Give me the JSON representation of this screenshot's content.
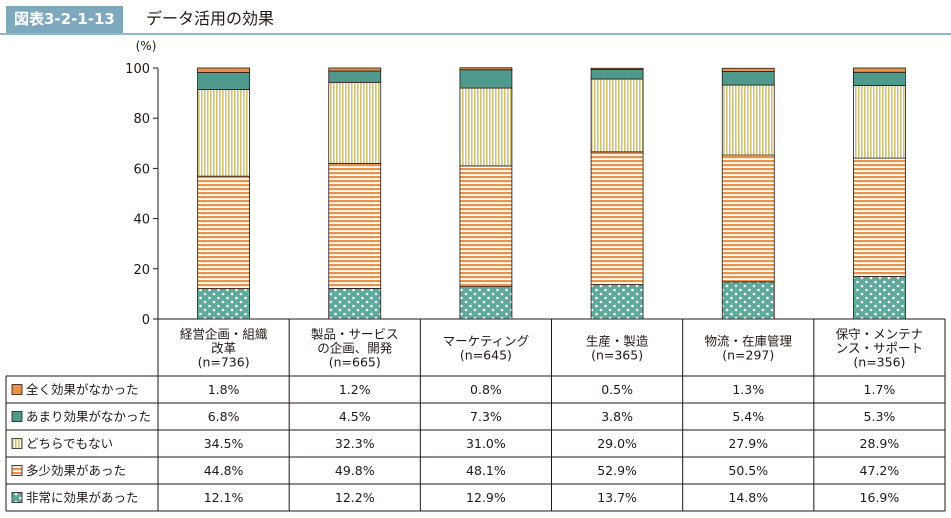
{
  "figure": {
    "number": "図表3-2-1-13",
    "title": "データ活用の効果"
  },
  "colors": {
    "header_badge": "#7da8be",
    "header_rule": "#8eb8cd",
    "very_effective": "#5fa89c",
    "somewhat_effective": "#e8924a",
    "neither": "#cfc27a",
    "not_very_effective": "#4f9a8c",
    "not_effective_at_all": "#e8924a"
  },
  "chart_data": {
    "type": "bar",
    "stacked": true,
    "unit": "(%)",
    "ylim": [
      0,
      100
    ],
    "yticks": [
      0,
      20,
      40,
      60,
      80,
      100
    ],
    "categories": [
      [
        "経営企画・組織",
        "改革",
        "(n=736)"
      ],
      [
        "製品・サービス",
        "の企画、開発",
        "(n=665)"
      ],
      [
        "マーケティング",
        "(n=645)"
      ],
      [
        "生産・製造",
        "(n=365)"
      ],
      [
        "物流・在庫管理",
        "(n=297)"
      ],
      [
        "保守・メンテナ",
        "ンス・サポート",
        "(n=356)"
      ]
    ],
    "series": [
      {
        "name": "非常に効果があった",
        "values": [
          12.1,
          12.2,
          12.9,
          13.7,
          14.8,
          16.9
        ],
        "labels": [
          "12.1%",
          "12.2%",
          "12.9%",
          "13.7%",
          "14.8%",
          "16.9%"
        ],
        "pattern": "dots",
        "color": "#5fa89c"
      },
      {
        "name": "多少効果があった",
        "values": [
          44.8,
          49.8,
          48.1,
          52.9,
          50.5,
          47.2
        ],
        "labels": [
          "44.8%",
          "49.8%",
          "48.1%",
          "52.9%",
          "50.5%",
          "47.2%"
        ],
        "pattern": "hstripes",
        "color": "#e8924a"
      },
      {
        "name": "どちらでもない",
        "values": [
          34.5,
          32.3,
          31.0,
          29.0,
          27.9,
          28.9
        ],
        "labels": [
          "34.5%",
          "32.3%",
          "31.0%",
          "29.0%",
          "27.9%",
          "28.9%"
        ],
        "pattern": "vstripes",
        "color": "#cfc27a"
      },
      {
        "name": "あまり効果がなかった",
        "values": [
          6.8,
          4.5,
          7.3,
          3.8,
          5.4,
          5.3
        ],
        "labels": [
          "6.8%",
          "4.5%",
          "7.3%",
          "3.8%",
          "5.4%",
          "5.3%"
        ],
        "pattern": "solid",
        "color": "#4f9a8c"
      },
      {
        "name": "全く効果がなかった",
        "values": [
          1.8,
          1.2,
          0.8,
          0.5,
          1.3,
          1.7
        ],
        "labels": [
          "1.8%",
          "1.2%",
          "0.8%",
          "0.5%",
          "1.3%",
          "1.7%"
        ],
        "pattern": "solid",
        "color": "#e8924a"
      }
    ],
    "table_row_order": [
      "全く効果がなかった",
      "あまり効果がなかった",
      "どちらでもない",
      "多少効果があった",
      "非常に効果があった"
    ]
  }
}
